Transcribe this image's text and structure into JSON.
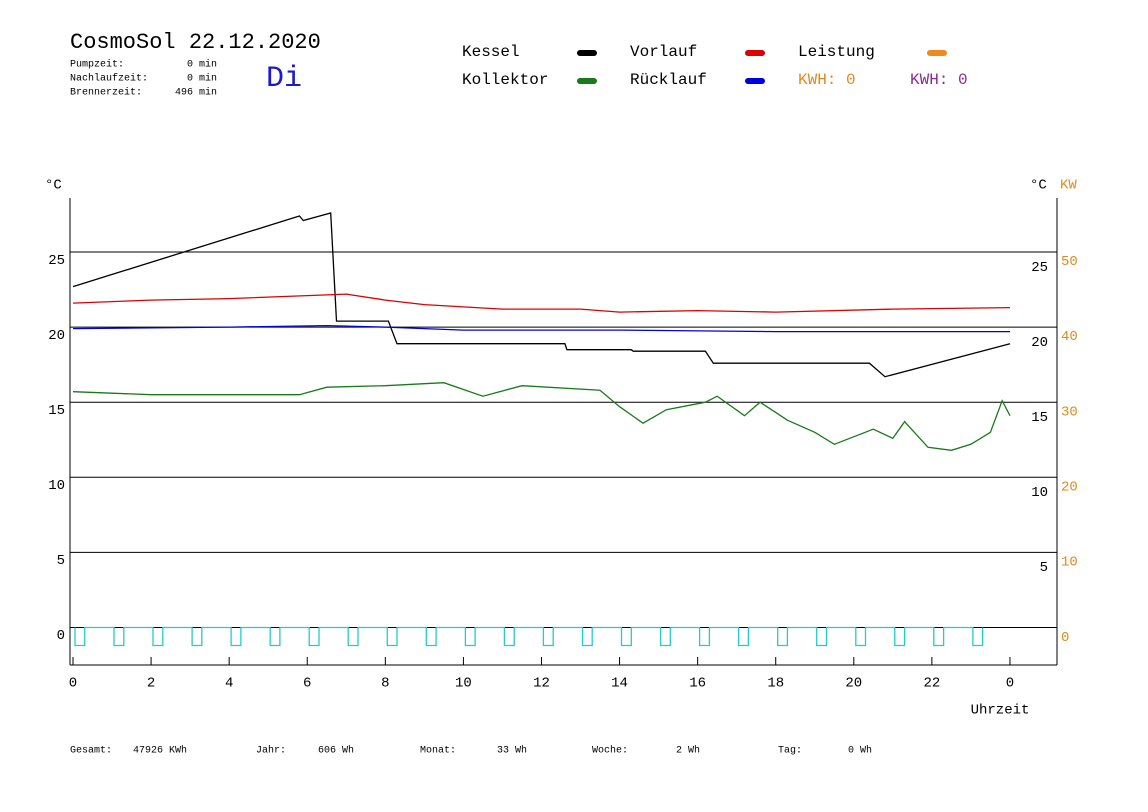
{
  "header": {
    "title": "CosmoSol 22.12.2020",
    "day": "Di",
    "stats": [
      {
        "label": "Pumpzeit:",
        "value": "0 min"
      },
      {
        "label": "Nachlaufzeit:",
        "value": "0 min"
      },
      {
        "label": "Brennerzeit:",
        "value": "496 min"
      }
    ]
  },
  "kwh": [
    {
      "text": "KWH: 0",
      "color": "#e08a1e"
    },
    {
      "text": "KWH: 0",
      "color": "#8a2a9a"
    }
  ],
  "footer": [
    {
      "label": "Gesamt:",
      "value": "47926 KWh"
    },
    {
      "label": "Jahr:",
      "value": "606 Wh"
    },
    {
      "label": "Monat:",
      "value": "33 Wh"
    },
    {
      "label": "Woche:",
      "value": "2 Wh"
    },
    {
      "label": "Tag:",
      "value": "0 Wh"
    }
  ],
  "chart_data": {
    "type": "line",
    "ylabel": "°C",
    "y2label_c": "°C",
    "y2label": "KW",
    "xlabel": "Uhrzeit",
    "xlim": [
      0,
      25
    ],
    "xticks": [
      0,
      2,
      4,
      6,
      8,
      10,
      12,
      14,
      16,
      18,
      20,
      22,
      {
        "value": 24,
        "label": "0"
      }
    ],
    "ylim": [
      -2.5,
      28.6
    ],
    "yticks": [
      0,
      5,
      10,
      15,
      20,
      25
    ],
    "y2lim": [
      -3.7,
      58.4
    ],
    "y2ticks": [
      0,
      10,
      20,
      30,
      40,
      50
    ],
    "y2color": "#e08a1e",
    "grid": true,
    "series": [
      {
        "name": "Kessel",
        "color": "#000000",
        "x": [
          0,
          5.8,
          5.9,
          6.6,
          6.75,
          8.08,
          8.3,
          12.6,
          12.65,
          14.3,
          14.35,
          16.2,
          16.4,
          20.4,
          20.8,
          24.0
        ],
        "values": [
          22.7,
          27.4,
          27.1,
          27.6,
          20.4,
          20.4,
          18.9,
          18.9,
          18.5,
          18.5,
          18.4,
          18.4,
          17.6,
          17.6,
          16.7,
          18.9
        ]
      },
      {
        "name": "Kollektor",
        "color": "#1a7a1a",
        "x": [
          0,
          2,
          4,
          5.8,
          6.5,
          8,
          9.5,
          10.5,
          11.5,
          13.5,
          14,
          14.6,
          15.2,
          16.2,
          16.5,
          17.2,
          17.6,
          18.3,
          19,
          19.5,
          20.5,
          21,
          21.3,
          21.9,
          22.5,
          23,
          23.5,
          23.8,
          24.0
        ],
        "values": [
          15.7,
          15.5,
          15.5,
          15.5,
          16.0,
          16.1,
          16.3,
          15.4,
          16.1,
          15.8,
          14.7,
          13.6,
          14.5,
          15.0,
          15.4,
          14.1,
          15.0,
          13.8,
          13.0,
          12.2,
          13.2,
          12.6,
          13.7,
          12.0,
          11.8,
          12.2,
          13.0,
          15.1,
          14.1
        ]
      },
      {
        "name": "Vorlauf",
        "color": "#dd0000",
        "x": [
          0,
          2,
          4,
          6,
          7,
          8,
          9,
          11,
          13,
          14,
          16,
          18,
          21,
          24
        ],
        "values": [
          21.6,
          21.8,
          21.9,
          22.1,
          22.2,
          21.8,
          21.5,
          21.2,
          21.2,
          21.0,
          21.1,
          21.0,
          21.2,
          21.3
        ]
      },
      {
        "name": "Rücklauf",
        "color": "#0000dd",
        "x": [
          0,
          4,
          6.5,
          8,
          10,
          14,
          18,
          24
        ],
        "values": [
          19.9,
          20.0,
          20.1,
          20.0,
          19.8,
          19.8,
          19.7,
          19.7
        ]
      },
      {
        "name": "Leistung",
        "color": "#f08a1e",
        "axis": "y2",
        "x": [],
        "values": []
      },
      {
        "color": "#22cccc",
        "x": [
          0.05,
          0.05,
          0.3,
          0.3,
          1.05,
          1.05,
          1.3,
          1.3,
          2.05,
          2.05,
          2.3,
          2.3,
          3.05,
          3.05,
          3.3,
          3.3,
          4.05,
          4.05,
          4.3,
          4.3,
          5.05,
          5.05,
          5.3,
          5.3,
          6.05,
          6.05,
          6.3,
          6.3,
          7.05,
          7.05,
          7.3,
          7.3,
          8.05,
          8.05,
          8.3,
          8.3,
          9.05,
          9.05,
          9.3,
          9.3,
          10.05,
          10.05,
          10.3,
          10.3,
          11.05,
          11.05,
          11.3,
          11.3,
          12.05,
          12.05,
          12.3,
          12.3,
          13.05,
          13.05,
          13.3,
          13.3,
          14.05,
          14.05,
          14.3,
          14.3,
          15.05,
          15.05,
          15.3,
          15.3,
          16.05,
          16.05,
          16.3,
          16.3,
          17.05,
          17.05,
          17.3,
          17.3,
          18.05,
          18.05,
          18.3,
          18.3,
          19.05,
          19.05,
          19.3,
          19.3,
          20.05,
          20.05,
          20.3,
          20.3,
          21.05,
          21.05,
          21.3,
          21.3,
          22.05,
          22.05,
          22.3,
          22.3,
          23.05,
          23.05,
          23.3,
          23.3
        ],
        "values": [
          0,
          -1.2,
          -1.2,
          0,
          0,
          -1.2,
          -1.2,
          0,
          0,
          -1.2,
          -1.2,
          0,
          0,
          -1.2,
          -1.2,
          0,
          0,
          -1.2,
          -1.2,
          0,
          0,
          -1.2,
          -1.2,
          0,
          0,
          -1.2,
          -1.2,
          0,
          0,
          -1.2,
          -1.2,
          0,
          0,
          -1.2,
          -1.2,
          0,
          0,
          -1.2,
          -1.2,
          0,
          0,
          -1.2,
          -1.2,
          0,
          0,
          -1.2,
          -1.2,
          0,
          0,
          -1.2,
          -1.2,
          0,
          0,
          -1.2,
          -1.2,
          0,
          0,
          -1.2,
          -1.2,
          0,
          0,
          -1.2,
          -1.2,
          0,
          0,
          -1.2,
          -1.2,
          0,
          0,
          -1.2,
          -1.2,
          0,
          0,
          -1.2,
          -1.2,
          0,
          0,
          -1.2,
          -1.2,
          0,
          0,
          -1.2,
          -1.2,
          0,
          0,
          -1.2,
          -1.2,
          0,
          0,
          -1.2,
          -1.2,
          0,
          0,
          -1.2,
          -1.2,
          0
        ]
      }
    ]
  }
}
